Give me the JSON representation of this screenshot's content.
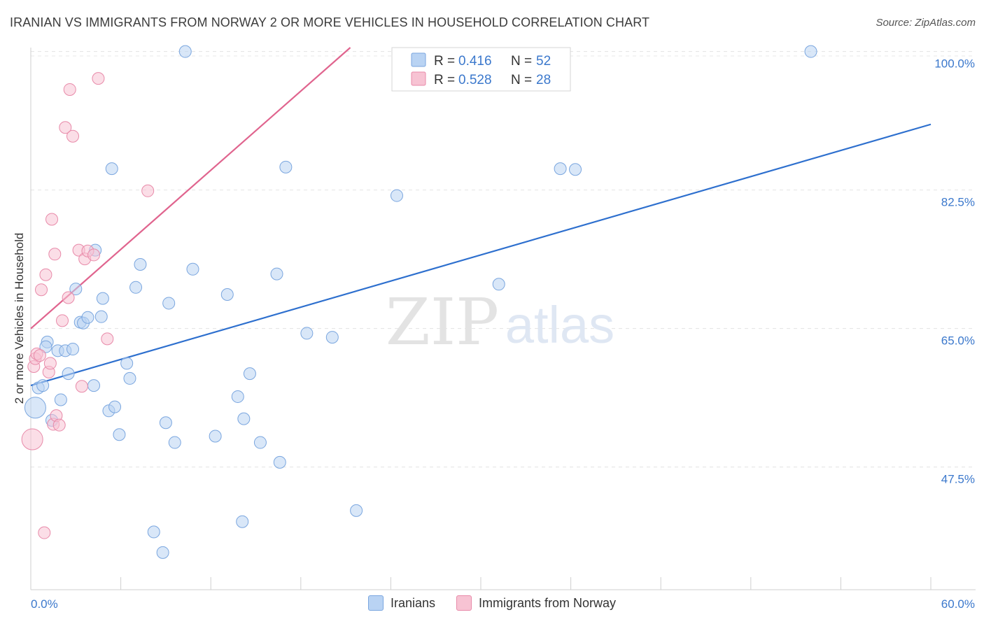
{
  "header": {
    "title": "IRANIAN VS IMMIGRANTS FROM NORWAY 2 OR MORE VEHICLES IN HOUSEHOLD CORRELATION CHART",
    "source": "Source: ZipAtlas.com"
  },
  "watermark": {
    "zip": "ZIP",
    "atlas": "atlas"
  },
  "chart_data": {
    "type": "scatter",
    "title": "IRANIAN VS IMMIGRANTS FROM NORWAY 2 OR MORE VEHICLES IN HOUSEHOLD CORRELATION CHART",
    "xlabel": "",
    "ylabel": "2 or more Vehicles in Household",
    "xlim": [
      0,
      60
    ],
    "ylim": [
      32,
      100.5
    ],
    "x_tick_labels": [
      "0.0%",
      "60.0%"
    ],
    "y_ticks": [
      47.5,
      65.0,
      82.5,
      100.0
    ],
    "y_tick_labels": [
      "47.5%",
      "65.0%",
      "82.5%",
      "100.0%"
    ],
    "colors": {
      "iranians_fill": "#b9d3f3",
      "iranians_stroke": "#7aa6df",
      "iranians_line": "#2d6fce",
      "norway_fill": "#f7c3d3",
      "norway_stroke": "#e88aa9",
      "norway_line": "#e0648e",
      "tick_text": "#3b78cc"
    },
    "legend": [
      {
        "r_label": "R = ",
        "r_value": "0.416",
        "n_label": "N = ",
        "n_value": "52"
      },
      {
        "r_label": "R = ",
        "r_value": "0.528",
        "n_label": "N = ",
        "n_value": "28"
      }
    ],
    "series": [
      {
        "name": "Iranians",
        "r": 0.416,
        "n": 52,
        "trend": {
          "x": [
            0,
            60
          ],
          "y": [
            57.8,
            90.8
          ]
        },
        "points": [
          {
            "x": 0.3,
            "y": 55.0,
            "s": 2
          },
          {
            "x": 0.5,
            "y": 57.5,
            "s": 1
          },
          {
            "x": 0.8,
            "y": 57.8,
            "s": 1
          },
          {
            "x": 1.1,
            "y": 63.3,
            "s": 1
          },
          {
            "x": 1.0,
            "y": 62.7,
            "s": 1
          },
          {
            "x": 1.4,
            "y": 53.4,
            "s": 1
          },
          {
            "x": 1.8,
            "y": 62.2,
            "s": 1
          },
          {
            "x": 2.0,
            "y": 56.0,
            "s": 1
          },
          {
            "x": 2.3,
            "y": 62.2,
            "s": 1
          },
          {
            "x": 2.5,
            "y": 59.3,
            "s": 1
          },
          {
            "x": 2.8,
            "y": 62.4,
            "s": 1
          },
          {
            "x": 3.0,
            "y": 70.0,
            "s": 1
          },
          {
            "x": 3.3,
            "y": 65.8,
            "s": 1
          },
          {
            "x": 3.5,
            "y": 65.7,
            "s": 1
          },
          {
            "x": 3.8,
            "y": 66.4,
            "s": 1
          },
          {
            "x": 4.2,
            "y": 57.8,
            "s": 1
          },
          {
            "x": 4.3,
            "y": 74.9,
            "s": 1
          },
          {
            "x": 4.7,
            "y": 66.5,
            "s": 1
          },
          {
            "x": 4.8,
            "y": 68.8,
            "s": 1
          },
          {
            "x": 5.2,
            "y": 54.6,
            "s": 1
          },
          {
            "x": 5.4,
            "y": 85.2,
            "s": 1
          },
          {
            "x": 5.6,
            "y": 55.1,
            "s": 1
          },
          {
            "x": 5.9,
            "y": 51.6,
            "s": 1
          },
          {
            "x": 6.4,
            "y": 60.6,
            "s": 1
          },
          {
            "x": 6.6,
            "y": 58.7,
            "s": 1
          },
          {
            "x": 7.0,
            "y": 70.2,
            "s": 1
          },
          {
            "x": 7.3,
            "y": 73.1,
            "s": 1
          },
          {
            "x": 8.2,
            "y": 39.3,
            "s": 1
          },
          {
            "x": 8.8,
            "y": 36.7,
            "s": 1
          },
          {
            "x": 9.0,
            "y": 53.1,
            "s": 1
          },
          {
            "x": 9.2,
            "y": 68.2,
            "s": 1
          },
          {
            "x": 9.6,
            "y": 50.6,
            "s": 1
          },
          {
            "x": 10.3,
            "y": 100.0,
            "s": 1
          },
          {
            "x": 10.8,
            "y": 72.5,
            "s": 1
          },
          {
            "x": 12.3,
            "y": 51.4,
            "s": 1
          },
          {
            "x": 13.1,
            "y": 69.3,
            "s": 1
          },
          {
            "x": 13.8,
            "y": 56.4,
            "s": 1
          },
          {
            "x": 14.1,
            "y": 40.6,
            "s": 1
          },
          {
            "x": 14.2,
            "y": 53.6,
            "s": 1
          },
          {
            "x": 14.6,
            "y": 59.3,
            "s": 1
          },
          {
            "x": 15.3,
            "y": 50.6,
            "s": 1
          },
          {
            "x": 16.4,
            "y": 71.9,
            "s": 1
          },
          {
            "x": 16.6,
            "y": 48.1,
            "s": 1
          },
          {
            "x": 17.0,
            "y": 85.4,
            "s": 1
          },
          {
            "x": 18.4,
            "y": 64.4,
            "s": 1
          },
          {
            "x": 20.1,
            "y": 63.9,
            "s": 1
          },
          {
            "x": 21.7,
            "y": 42.0,
            "s": 1
          },
          {
            "x": 24.4,
            "y": 81.8,
            "s": 1
          },
          {
            "x": 31.2,
            "y": 70.6,
            "s": 1
          },
          {
            "x": 35.3,
            "y": 85.2,
            "s": 1
          },
          {
            "x": 36.3,
            "y": 85.1,
            "s": 1
          },
          {
            "x": 52.0,
            "y": 100.0,
            "s": 1
          }
        ]
      },
      {
        "name": "Immigrants from Norway",
        "r": 0.528,
        "n": 28,
        "trend": {
          "x": [
            0,
            21.3
          ],
          "y": [
            65.0,
            100.5
          ]
        },
        "points": [
          {
            "x": 0.1,
            "y": 51.0,
            "s": 2
          },
          {
            "x": 0.2,
            "y": 60.2,
            "s": 1
          },
          {
            "x": 0.3,
            "y": 61.2,
            "s": 1
          },
          {
            "x": 0.4,
            "y": 61.8,
            "s": 1
          },
          {
            "x": 0.6,
            "y": 61.6,
            "s": 1
          },
          {
            "x": 0.7,
            "y": 69.9,
            "s": 1
          },
          {
            "x": 0.9,
            "y": 39.2,
            "s": 1
          },
          {
            "x": 1.0,
            "y": 71.8,
            "s": 1
          },
          {
            "x": 1.2,
            "y": 59.5,
            "s": 1
          },
          {
            "x": 1.3,
            "y": 60.6,
            "s": 1
          },
          {
            "x": 1.4,
            "y": 78.8,
            "s": 1
          },
          {
            "x": 1.5,
            "y": 52.9,
            "s": 1
          },
          {
            "x": 1.6,
            "y": 74.4,
            "s": 1
          },
          {
            "x": 1.7,
            "y": 54.0,
            "s": 1
          },
          {
            "x": 1.9,
            "y": 52.8,
            "s": 1
          },
          {
            "x": 2.1,
            "y": 66.0,
            "s": 1
          },
          {
            "x": 2.3,
            "y": 90.4,
            "s": 1
          },
          {
            "x": 2.5,
            "y": 68.9,
            "s": 1
          },
          {
            "x": 2.6,
            "y": 95.2,
            "s": 1
          },
          {
            "x": 2.8,
            "y": 89.3,
            "s": 1
          },
          {
            "x": 3.2,
            "y": 74.9,
            "s": 1
          },
          {
            "x": 3.4,
            "y": 57.7,
            "s": 1
          },
          {
            "x": 3.6,
            "y": 73.8,
            "s": 1
          },
          {
            "x": 3.8,
            "y": 74.8,
            "s": 1
          },
          {
            "x": 4.2,
            "y": 74.3,
            "s": 1
          },
          {
            "x": 4.5,
            "y": 96.6,
            "s": 1
          },
          {
            "x": 5.1,
            "y": 63.7,
            "s": 1
          },
          {
            "x": 7.8,
            "y": 82.4,
            "s": 1
          }
        ]
      }
    ]
  },
  "bottom_legend": [
    {
      "label": "Iranians"
    },
    {
      "label": "Immigrants from Norway"
    }
  ]
}
